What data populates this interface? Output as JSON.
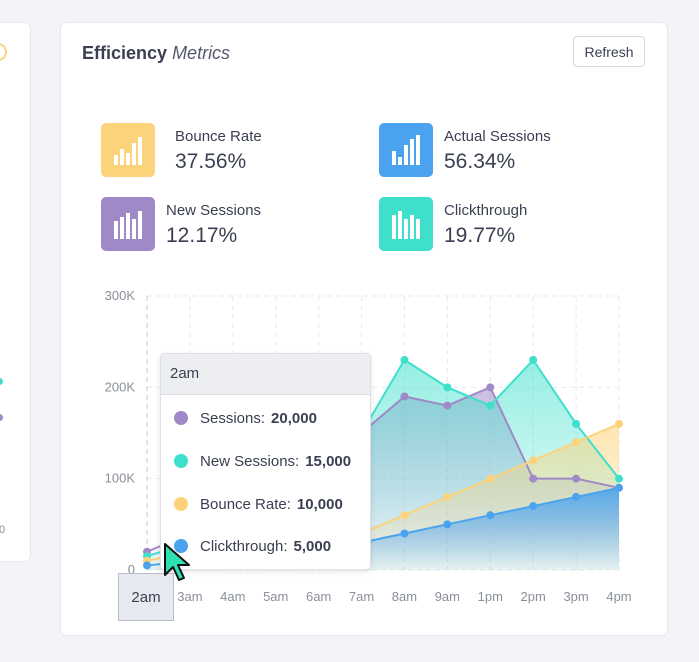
{
  "left_card": {
    "tick_zero": "0"
  },
  "card": {
    "title_bold": "Efficiency",
    "title_italic": "Metrics",
    "refresh_label": "Refresh"
  },
  "metrics": [
    {
      "label": "Bounce Rate",
      "value": "37.56%",
      "color": "#fbd37a"
    },
    {
      "label": "Actual Sessions",
      "value": "56.34%",
      "color": "#4ba3ef"
    },
    {
      "label": "New Sessions",
      "value": "12.17%",
      "color": "#9f89c6"
    },
    {
      "label": "Clickthrough",
      "value": "19.77%",
      "color": "#3ee0cc"
    }
  ],
  "tooltip": {
    "title": "2am",
    "rows": [
      {
        "label": "Sessions:",
        "value": "20,000",
        "color": "#9f89c6"
      },
      {
        "label": "New Sessions:",
        "value": "15,000",
        "color": "#3ee0cc"
      },
      {
        "label": "Bounce Rate:",
        "value": "10,000",
        "color": "#fbd37a"
      },
      {
        "label": "Clickthrough:",
        "value": "5,000",
        "color": "#4ba3ef"
      }
    ]
  },
  "hover_label": "2am",
  "chart_data": {
    "type": "area",
    "x": [
      "2am",
      "3am",
      "4am",
      "5am",
      "6am",
      "7am",
      "8am",
      "9am",
      "1pm",
      "2pm",
      "3pm",
      "4pm"
    ],
    "ylim": [
      0,
      300000
    ],
    "y_ticks": [
      "0",
      "100K",
      "200K",
      "300K"
    ],
    "grid": true,
    "series": [
      {
        "name": "Sessions",
        "color": "#9f89c6",
        "values": [
          20000,
          40000,
          60000,
          80000,
          100000,
          150000,
          190000,
          180000,
          200000,
          100000,
          100000,
          90000
        ]
      },
      {
        "name": "New Sessions",
        "color": "#3ee0cc",
        "values": [
          15000,
          30000,
          45000,
          60000,
          80000,
          150000,
          230000,
          200000,
          180000,
          230000,
          160000,
          100000
        ]
      },
      {
        "name": "Bounce Rate",
        "color": "#fbd37a",
        "values": [
          10000,
          20000,
          30000,
          40000,
          30000,
          40000,
          60000,
          80000,
          100000,
          120000,
          140000,
          160000
        ]
      },
      {
        "name": "Clickthrough",
        "color": "#4ba3ef",
        "values": [
          5000,
          10000,
          15000,
          20000,
          25000,
          30000,
          40000,
          50000,
          60000,
          70000,
          80000,
          90000
        ]
      }
    ]
  }
}
